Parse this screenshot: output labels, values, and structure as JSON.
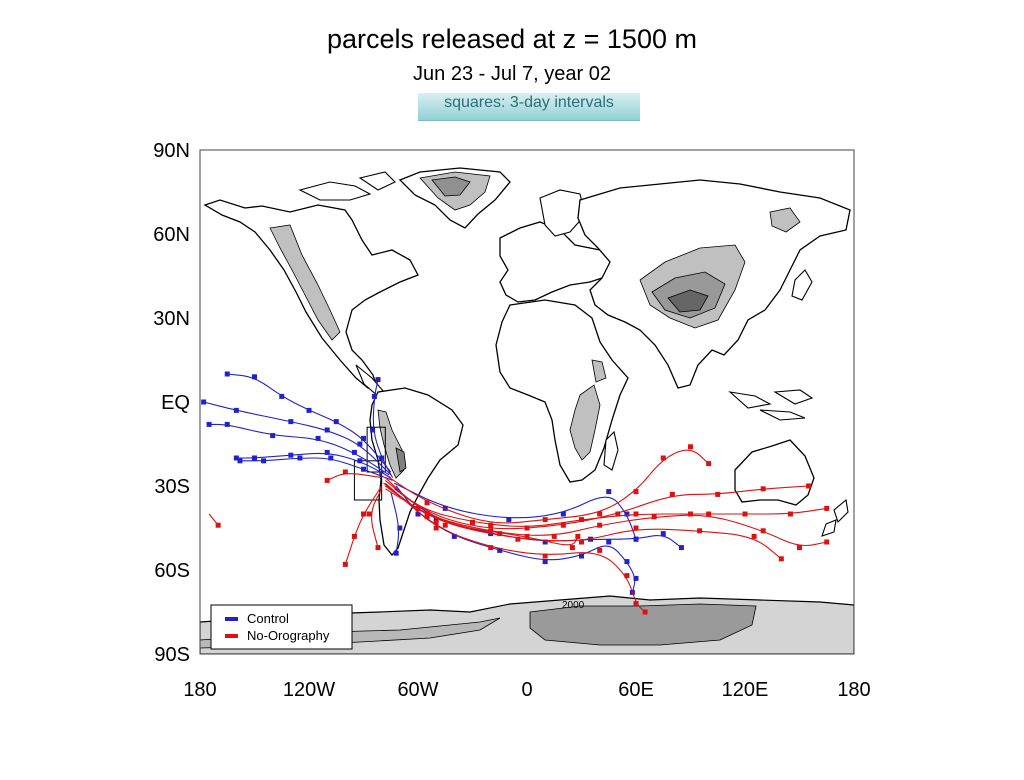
{
  "chart_data": {
    "type": "map",
    "title": "parcels released at z = 1500 m",
    "subtitle": "Jun 23 - Jul 7, year 02",
    "note": "squares: 3-day intervals",
    "xlim": [
      -180,
      180
    ],
    "ylim": [
      -90,
      90
    ],
    "x_ticks": [
      -180,
      -120,
      -60,
      0,
      60,
      120,
      180
    ],
    "x_tick_labels": [
      "180",
      "120W",
      "60W",
      "0",
      "60E",
      "120E",
      "180"
    ],
    "y_ticks": [
      90,
      60,
      30,
      0,
      -30,
      -60,
      -90
    ],
    "y_tick_labels": [
      "90N",
      "60N",
      "30N",
      "EQ",
      "30S",
      "60S",
      "90S"
    ],
    "contour_label": "2000",
    "legend_position": "bottom-left",
    "series": [
      {
        "name": "Control",
        "color": "#2222cc",
        "trajectories": [
          [
            [
              -75,
              -25
            ],
            [
              -90,
              -13
            ],
            [
              -105,
              -7
            ],
            [
              -120,
              -3
            ],
            [
              -135,
              2
            ],
            [
              -150,
              9
            ],
            [
              -165,
              10
            ]
          ],
          [
            [
              -75,
              -26
            ],
            [
              -92,
              -15
            ],
            [
              -110,
              -10
            ],
            [
              -130,
              -7
            ],
            [
              -160,
              -3
            ],
            [
              -178,
              0
            ]
          ],
          [
            [
              -76,
              -26
            ],
            [
              -95,
              -18
            ],
            [
              -115,
              -13
            ],
            [
              -140,
              -12
            ],
            [
              -165,
              -8
            ],
            [
              -175,
              -8
            ]
          ],
          [
            [
              -75,
              -27
            ],
            [
              -92,
              -21
            ],
            [
              -110,
              -18
            ],
            [
              -130,
              -19
            ],
            [
              -150,
              -20
            ],
            [
              -160,
              -20
            ]
          ],
          [
            [
              -74,
              -28
            ],
            [
              -90,
              -24
            ],
            [
              -108,
              -20
            ],
            [
              -125,
              -20
            ],
            [
              -145,
              -21
            ],
            [
              -158,
              -21
            ]
          ],
          [
            [
              -72,
              -30
            ],
            [
              -60,
              -40
            ],
            [
              -40,
              -48
            ],
            [
              -15,
              -53
            ],
            [
              10,
              -57
            ],
            [
              30,
              -55
            ],
            [
              45,
              -50
            ],
            [
              55,
              -57
            ],
            [
              60,
              -63
            ],
            [
              58,
              -68
            ]
          ],
          [
            [
              -73,
              -31
            ],
            [
              -50,
              -42
            ],
            [
              -20,
              -47
            ],
            [
              10,
              -50
            ],
            [
              35,
              -49
            ],
            [
              60,
              -49
            ],
            [
              75,
              -47
            ],
            [
              85,
              -52
            ]
          ],
          [
            [
              -73,
              -29
            ],
            [
              -45,
              -38
            ],
            [
              -10,
              -42
            ],
            [
              20,
              -40
            ],
            [
              45,
              -32
            ],
            [
              55,
              -40
            ],
            [
              60,
              -49
            ]
          ],
          [
            [
              -74,
              -27
            ],
            [
              -80,
              -20
            ],
            [
              -85,
              -10
            ],
            [
              -84,
              2
            ],
            [
              -82,
              8
            ]
          ],
          [
            [
              -75,
              -32
            ],
            [
              -70,
              -45
            ],
            [
              -72,
              -54
            ]
          ]
        ]
      },
      {
        "name": "No-Orography",
        "color": "#dd1111",
        "trajectories": [
          [
            [
              -78,
              -27
            ],
            [
              -60,
              -38
            ],
            [
              -30,
              -43
            ],
            [
              0,
              -45
            ],
            [
              30,
              -42
            ],
            [
              60,
              -40
            ],
            [
              90,
              -40
            ],
            [
              120,
              -40
            ],
            [
              145,
              -40
            ],
            [
              165,
              -38
            ]
          ],
          [
            [
              -78,
              -28
            ],
            [
              -55,
              -40
            ],
            [
              -20,
              -46
            ],
            [
              20,
              -44
            ],
            [
              50,
              -40
            ],
            [
              80,
              -33
            ],
            [
              105,
              -33
            ],
            [
              130,
              -31
            ],
            [
              155,
              -30
            ]
          ],
          [
            [
              -79,
              -29
            ],
            [
              -55,
              -41
            ],
            [
              -15,
              -47
            ],
            [
              15,
              -48
            ],
            [
              40,
              -44
            ],
            [
              70,
              -41
            ],
            [
              100,
              -40
            ],
            [
              130,
              -46
            ],
            [
              150,
              -52
            ],
            [
              165,
              -50
            ]
          ],
          [
            [
              -78,
              -30
            ],
            [
              -50,
              -43
            ],
            [
              -5,
              -49
            ],
            [
              30,
              -50
            ],
            [
              60,
              -45
            ],
            [
              95,
              -46
            ],
            [
              125,
              -48
            ],
            [
              140,
              -56
            ]
          ],
          [
            [
              -78,
              -31
            ],
            [
              -45,
              -44
            ],
            [
              0,
              -48
            ],
            [
              25,
              -52
            ],
            [
              28,
              -48
            ]
          ],
          [
            [
              -78,
              -26
            ],
            [
              -55,
              -36
            ],
            [
              -20,
              -44
            ],
            [
              10,
              -42
            ],
            [
              40,
              -40
            ],
            [
              60,
              -32
            ],
            [
              75,
              -20
            ],
            [
              90,
              -16
            ],
            [
              100,
              -22
            ]
          ],
          [
            [
              -80,
              -30
            ],
            [
              -90,
              -40
            ],
            [
              -95,
              -48
            ],
            [
              -100,
              -58
            ]
          ],
          [
            [
              -80,
              -31
            ],
            [
              -87,
              -40
            ],
            [
              -82,
              -52
            ]
          ],
          [
            [
              -80,
              -27
            ],
            [
              -100,
              -25
            ],
            [
              -110,
              -28
            ]
          ],
          [
            [
              -175,
              -40
            ],
            [
              -170,
              -44
            ]
          ],
          [
            [
              -78,
              -29
            ],
            [
              -50,
              -45
            ],
            [
              -20,
              -52
            ],
            [
              10,
              -55
            ],
            [
              40,
              -53
            ],
            [
              55,
              -62
            ],
            [
              60,
              -72
            ],
            [
              65,
              -75
            ]
          ]
        ]
      }
    ],
    "highlight_boxes": [
      {
        "lon_min": -88,
        "lon_max": -78,
        "lat_min": -25,
        "lat_max": -9
      },
      {
        "lon_min": -95,
        "lon_max": -80,
        "lat_min": -35,
        "lat_max": -21
      }
    ]
  }
}
